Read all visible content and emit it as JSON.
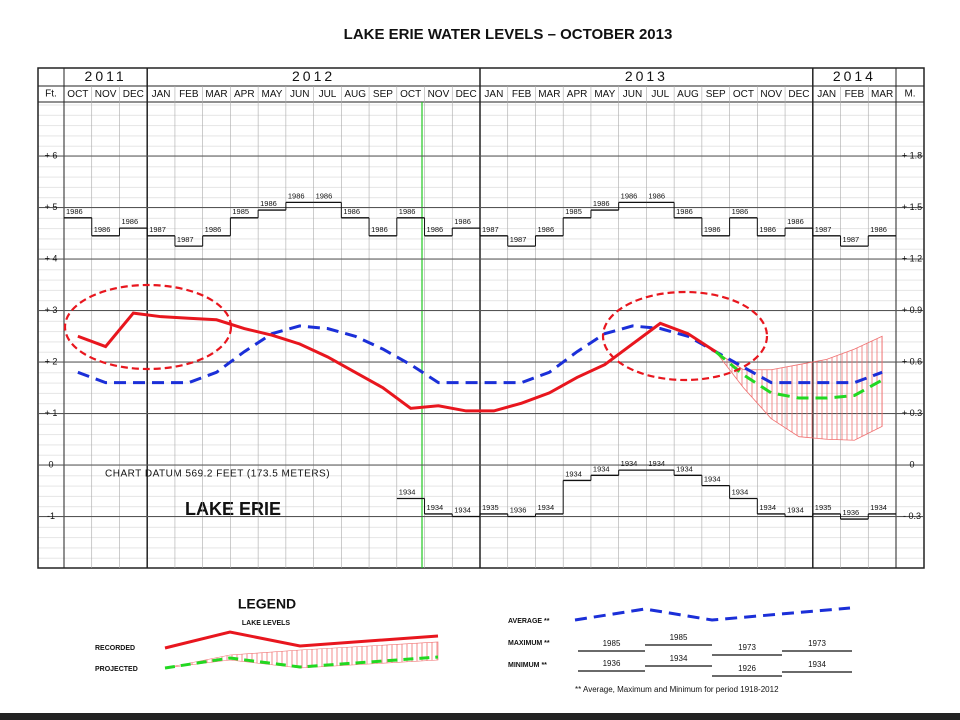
{
  "chart_data": {
    "type": "line",
    "title": "LAKE ERIE WATER LEVELS – OCTOBER 2013",
    "years": [
      "2011",
      "2012",
      "2013",
      "2014"
    ],
    "categories": [
      "OCT",
      "NOV",
      "DEC",
      "JAN",
      "FEB",
      "MAR",
      "APR",
      "MAY",
      "JUN",
      "JUL",
      "AUG",
      "SEP",
      "OCT",
      "NOV",
      "DEC",
      "JAN",
      "FEB",
      "MAR",
      "APR",
      "MAY",
      "JUN",
      "JUL",
      "AUG",
      "SEP",
      "OCT",
      "NOV",
      "DEC",
      "JAN",
      "FEB",
      "MAR"
    ],
    "ylabel": "Ft.",
    "y2label": "M.",
    "ylim": [
      -2,
      7
    ],
    "yticks": [
      {
        "value": 6,
        "label": "+ 6"
      },
      {
        "value": 5,
        "label": "+ 5"
      },
      {
        "value": 4,
        "label": "+ 4"
      },
      {
        "value": 3,
        "label": "+ 3"
      },
      {
        "value": 2,
        "label": "+ 2"
      },
      {
        "value": 1,
        "label": "+ 1"
      },
      0,
      {
        "value": -1,
        "label": "-1"
      }
    ],
    "y2lim": [
      -0.6,
      2.1
    ],
    "y2ticks": [
      {
        "value": 1.8,
        "label": "+ 1.8"
      },
      {
        "value": 1.5,
        "label": "+ 1.5"
      },
      {
        "value": 1.2,
        "label": "+ 1.2"
      },
      {
        "value": 0.9,
        "label": "+ 0.9"
      },
      {
        "value": 0.6,
        "label": "+ 0.6"
      },
      {
        "value": 0.3,
        "label": "+ 0.3"
      },
      0,
      {
        "value": -0.3,
        "label": "- 0.3"
      }
    ],
    "grid": true,
    "annotations": [
      "CHART DATUM 569.2 FEET (173.5 METERS)",
      "LAKE ERIE"
    ],
    "series": [
      {
        "name": "RECORDED",
        "color": "#e8161e",
        "dash": false,
        "values": [
          2.5,
          2.3,
          2.95,
          2.88,
          2.85,
          2.82,
          2.65,
          2.52,
          2.35,
          2.1,
          1.8,
          1.5,
          1.1,
          1.15,
          1.05,
          1.05,
          1.2,
          1.4,
          1.7,
          1.95,
          2.35,
          2.75,
          2.55,
          2.2,
          null,
          null,
          null,
          null,
          null,
          null
        ]
      },
      {
        "name": "PROJECTED",
        "color": "#22d822",
        "dash": true,
        "values": [
          null,
          null,
          null,
          null,
          null,
          null,
          null,
          null,
          null,
          null,
          null,
          null,
          null,
          null,
          null,
          null,
          null,
          null,
          null,
          null,
          null,
          null,
          null,
          2.2,
          1.75,
          1.4,
          1.3,
          1.3,
          1.35,
          1.65
        ],
        "upper": [
          null,
          null,
          null,
          null,
          null,
          null,
          null,
          null,
          null,
          null,
          null,
          null,
          null,
          null,
          null,
          null,
          null,
          null,
          null,
          null,
          null,
          null,
          null,
          2.2,
          1.85,
          1.85,
          1.95,
          2.05,
          2.25,
          2.5
        ],
        "lower": [
          null,
          null,
          null,
          null,
          null,
          null,
          null,
          null,
          null,
          null,
          null,
          null,
          null,
          null,
          null,
          null,
          null,
          null,
          null,
          null,
          null,
          null,
          null,
          2.2,
          1.5,
          0.9,
          0.55,
          0.5,
          0.48,
          0.75
        ]
      },
      {
        "name": "AVERAGE **",
        "color": "#1b2fd8",
        "dash": true,
        "values": [
          1.8,
          1.6,
          1.6,
          1.6,
          1.6,
          1.8,
          2.2,
          2.55,
          2.7,
          2.65,
          2.5,
          2.25,
          1.95,
          1.6,
          1.6,
          1.6,
          1.6,
          1.8,
          2.2,
          2.55,
          2.7,
          2.65,
          2.5,
          2.2,
          1.9,
          1.6,
          1.6,
          1.6,
          1.6,
          1.8
        ]
      },
      {
        "name": "MAXIMUM **",
        "color": "#111111",
        "dash": false,
        "values": [
          4.8,
          4.45,
          4.6,
          4.45,
          4.25,
          4.45,
          4.8,
          4.95,
          5.1,
          5.1,
          4.8,
          4.45,
          4.8,
          4.45,
          4.6,
          4.45,
          4.25,
          4.45,
          4.8,
          4.95,
          5.1,
          5.1,
          4.8,
          4.45,
          4.8,
          4.45,
          4.6,
          4.45,
          4.25,
          4.45
        ],
        "years": [
          "1986",
          "1986",
          "1986",
          "1987",
          "1987",
          "1986",
          "1985",
          "1986",
          "1986",
          "1986",
          "1986",
          "1986",
          "1986",
          "1986",
          "1986",
          "1987",
          "1987",
          "1986",
          "1985",
          "1986",
          "1986",
          "1986",
          "1986",
          "1986",
          "1986",
          "1986",
          "1986",
          "1987",
          "1987",
          "1986"
        ]
      },
      {
        "name": "MINIMUM **",
        "color": "#111111",
        "dash": false,
        "values": [
          null,
          null,
          null,
          null,
          null,
          null,
          null,
          null,
          null,
          null,
          null,
          null,
          -0.65,
          -0.95,
          -1.0,
          -0.95,
          -1.0,
          -0.95,
          -0.3,
          -0.2,
          -0.1,
          -0.1,
          -0.2,
          -0.4,
          -0.65,
          -0.95,
          -1.0,
          -0.95,
          -1.05,
          -0.95
        ],
        "years": [
          null,
          null,
          null,
          null,
          null,
          null,
          null,
          null,
          null,
          null,
          null,
          null,
          "1934",
          "1934",
          "1934",
          "1935",
          "1936",
          "1934",
          "1934",
          "1934",
          "1934",
          "1934",
          "1934",
          "1934",
          "1934",
          "1934",
          "1934",
          "1935",
          "1936",
          "1934"
        ]
      }
    ]
  },
  "legend": {
    "title": "LEGEND",
    "subtitle": "LAKE LEVELS",
    "maximum_years": [
      "1985",
      "1985",
      "1973",
      "1973"
    ],
    "minimum_years": [
      "1936",
      "1934",
      "1926",
      "1934"
    ],
    "footnote": "** Average, Maximum and Minimum for period 1918-2012"
  }
}
